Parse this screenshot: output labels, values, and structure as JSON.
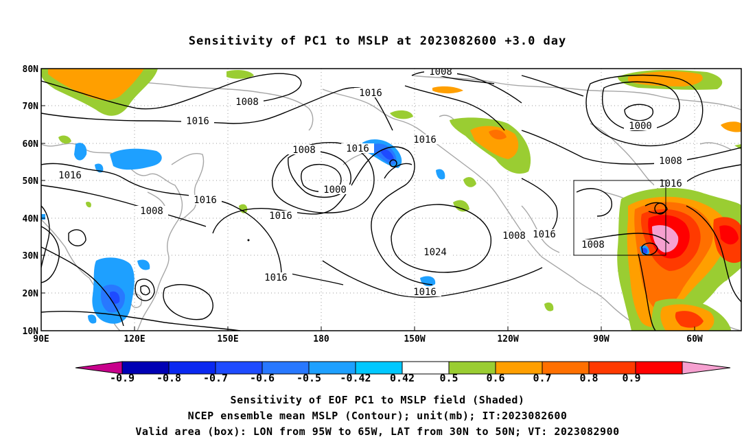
{
  "title": "Sensitivity of PC1 to MSLP at 2023082600 +3.0 day",
  "map": {
    "lon_labels": [
      "90E",
      "120E",
      "150E",
      "180",
      "150W",
      "120W",
      "90W",
      "60W"
    ],
    "lat_labels": [
      "80N",
      "70N",
      "60N",
      "50N",
      "40N",
      "30N",
      "20N",
      "10N"
    ],
    "contour_labels": [
      "1008",
      "1016",
      "1008",
      "1016",
      "1016",
      "1008",
      "1016",
      "1016",
      "1000",
      "1008",
      "1016",
      "1016",
      "1016",
      "1024",
      "1016",
      "1008",
      "1016",
      "1008",
      "1008",
      "1000",
      "1008",
      "1016"
    ],
    "box": {
      "lon_from": "95W",
      "lon_to": "65W",
      "lat_from": "30N",
      "lat_to": "50N"
    }
  },
  "colorbar": {
    "labels": [
      "-0.9",
      "-0.8",
      "-0.7",
      "-0.6",
      "-0.5",
      "-0.42",
      "0.42",
      "0.5",
      "0.6",
      "0.7",
      "0.8",
      "0.9"
    ],
    "colors": [
      "#c8008c",
      "#0000b4",
      "#0a28f0",
      "#1e4bff",
      "#2878ff",
      "#1ea0ff",
      "#00c8ff",
      "#ffffff",
      "#9acd32",
      "#ff9f00",
      "#ff7000",
      "#ff3a00",
      "#ff0000",
      "#f6a0d0"
    ]
  },
  "captions": [
    "Sensitivity of EOF PC1 to MSLP field (Shaded)",
    "NCEP ensemble mean MSLP (Contour); unit(mb); IT:2023082600",
    "Valid area (box): LON from 95W to 65W, LAT from 30N to 50N; VT: 2023082900"
  ]
}
